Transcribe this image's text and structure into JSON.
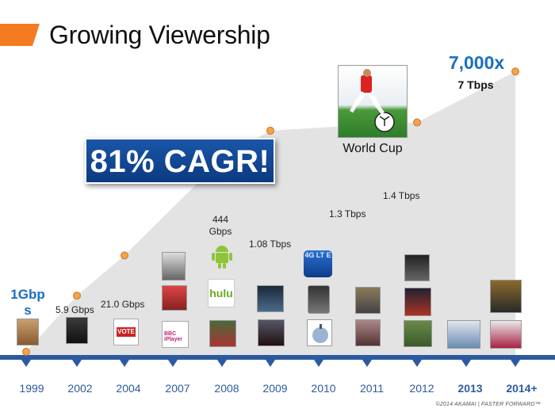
{
  "title": "Growing Viewership",
  "badge": "81% CAGR!",
  "annotations": {
    "start_value": "1Gbps",
    "end_value": "7,000x",
    "end_sub": "7 Tbps",
    "world_cup": "World Cup",
    "lte_badge": "4G LT E",
    "hulu": "hulu",
    "vote": "VOTE",
    "bbc": "BBC iPlayer"
  },
  "footer": "©2014 AKAMAI | FASTER FORWARD™",
  "chart_data": {
    "type": "area",
    "x": [
      "1999",
      "2002",
      "2004",
      "2007",
      "2008",
      "2009",
      "2010",
      "2011",
      "2012",
      "2013",
      "2014+"
    ],
    "labels": [
      "1Gbps",
      "5.9 Gbps",
      "21.0 Gbps",
      "",
      "444 Gbps",
      "1.08 Tbps",
      "",
      "1.3 Tbps",
      "1.4 Tbps",
      "",
      "7 Tbps"
    ],
    "values_gbps": [
      1,
      5.9,
      21.0,
      null,
      444,
      1080,
      null,
      1300,
      1400,
      null,
      7000
    ],
    "bold_years": [
      "2013",
      "2014+"
    ],
    "colors": {
      "accent": "#f47b20",
      "area": "#e3e3e3",
      "axis": "#2c5aa0",
      "marker": "#f4a24c",
      "highlight": "#1a6fc0",
      "badge": "#0b3a80"
    }
  }
}
